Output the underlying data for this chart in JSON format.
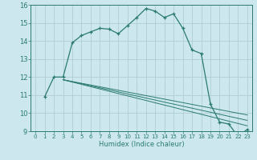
{
  "title": "",
  "xlabel": "Humidex (Indice chaleur)",
  "background_color": "#cce8ee",
  "grid_color": "#b0cdd4",
  "line_color": "#2a7a6f",
  "xlim": [
    -0.5,
    23.5
  ],
  "ylim": [
    9,
    16
  ],
  "yticks": [
    9,
    10,
    11,
    12,
    13,
    14,
    15,
    16
  ],
  "xticks": [
    0,
    1,
    2,
    3,
    4,
    5,
    6,
    7,
    8,
    9,
    10,
    11,
    12,
    13,
    14,
    15,
    16,
    17,
    18,
    19,
    20,
    21,
    22,
    23
  ],
  "series_main": {
    "x": [
      1,
      2,
      3,
      4,
      5,
      6,
      7,
      8,
      9,
      10,
      11,
      12,
      13,
      14,
      15,
      16,
      17,
      18,
      19,
      20,
      21,
      22,
      23
    ],
    "y": [
      10.9,
      12.0,
      12.0,
      13.9,
      14.3,
      14.5,
      14.7,
      14.65,
      14.4,
      14.85,
      15.3,
      15.8,
      15.65,
      15.3,
      15.5,
      14.7,
      13.5,
      13.3,
      10.5,
      9.5,
      9.4,
      8.7,
      9.1
    ]
  },
  "series_lines": [
    {
      "x": [
        3,
        23
      ],
      "y": [
        11.85,
        9.3
      ]
    },
    {
      "x": [
        3,
        23
      ],
      "y": [
        11.85,
        9.6
      ]
    },
    {
      "x": [
        3,
        23
      ],
      "y": [
        11.85,
        9.9
      ]
    }
  ]
}
